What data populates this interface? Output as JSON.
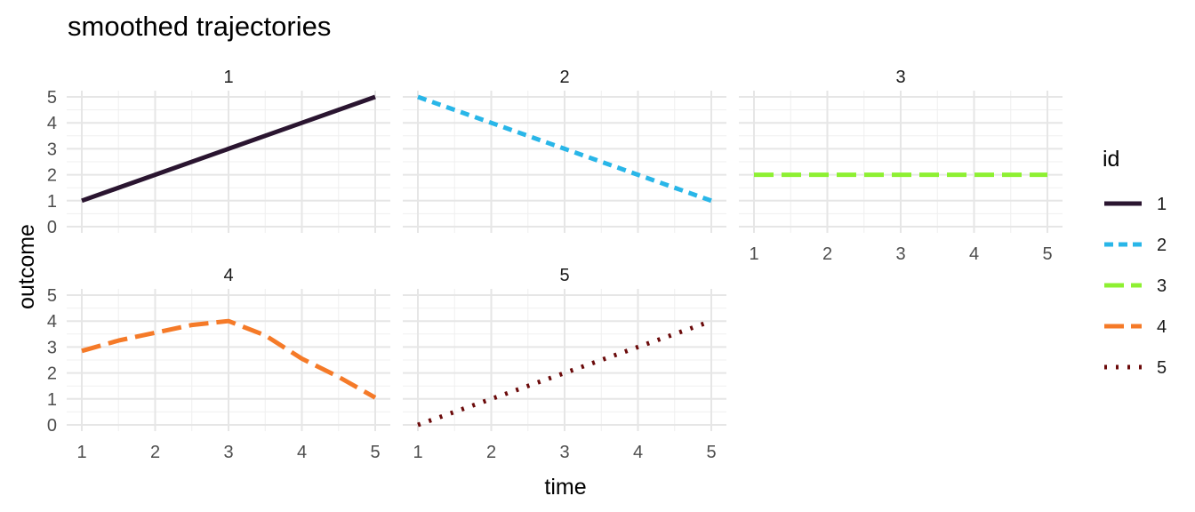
{
  "chart_data": {
    "type": "line",
    "title": "smoothed trajectories",
    "xlabel": "time",
    "ylabel": "outcome",
    "xlim": [
      1,
      5
    ],
    "ylim": [
      0,
      5
    ],
    "x_ticks": [
      1,
      2,
      3,
      4,
      5
    ],
    "y_ticks": [
      0,
      1,
      2,
      3,
      4,
      5
    ],
    "grid": true,
    "facets": [
      "1",
      "2",
      "3",
      "4",
      "5"
    ],
    "legend": {
      "title": "id",
      "placement": "right"
    },
    "series": [
      {
        "name": "1",
        "color": "#2a1530",
        "dash": "solid",
        "x": [
          1,
          2,
          3,
          4,
          5
        ],
        "y": [
          1,
          2,
          3,
          4,
          5
        ]
      },
      {
        "name": "2",
        "color": "#29b6e8",
        "dash": "dashed",
        "x": [
          1,
          2,
          3,
          4,
          5
        ],
        "y": [
          5,
          4,
          3,
          2,
          1
        ]
      },
      {
        "name": "3",
        "color": "#8ef032",
        "dash": "longdash",
        "x": [
          1,
          2,
          3,
          4,
          5
        ],
        "y": [
          2,
          2,
          2,
          2,
          2
        ]
      },
      {
        "name": "4",
        "color": "#f57a28",
        "dash": "longdash",
        "x": [
          1,
          1.5,
          2,
          2.5,
          3,
          3.5,
          4,
          4.5,
          5
        ],
        "y": [
          2.85,
          3.25,
          3.55,
          3.85,
          4.0,
          3.45,
          2.55,
          1.85,
          1.05
        ]
      },
      {
        "name": "5",
        "color": "#6b0a0a",
        "dash": "dotted",
        "x": [
          1,
          2,
          3,
          4,
          5
        ],
        "y": [
          0,
          1,
          2,
          3,
          4
        ]
      }
    ]
  }
}
